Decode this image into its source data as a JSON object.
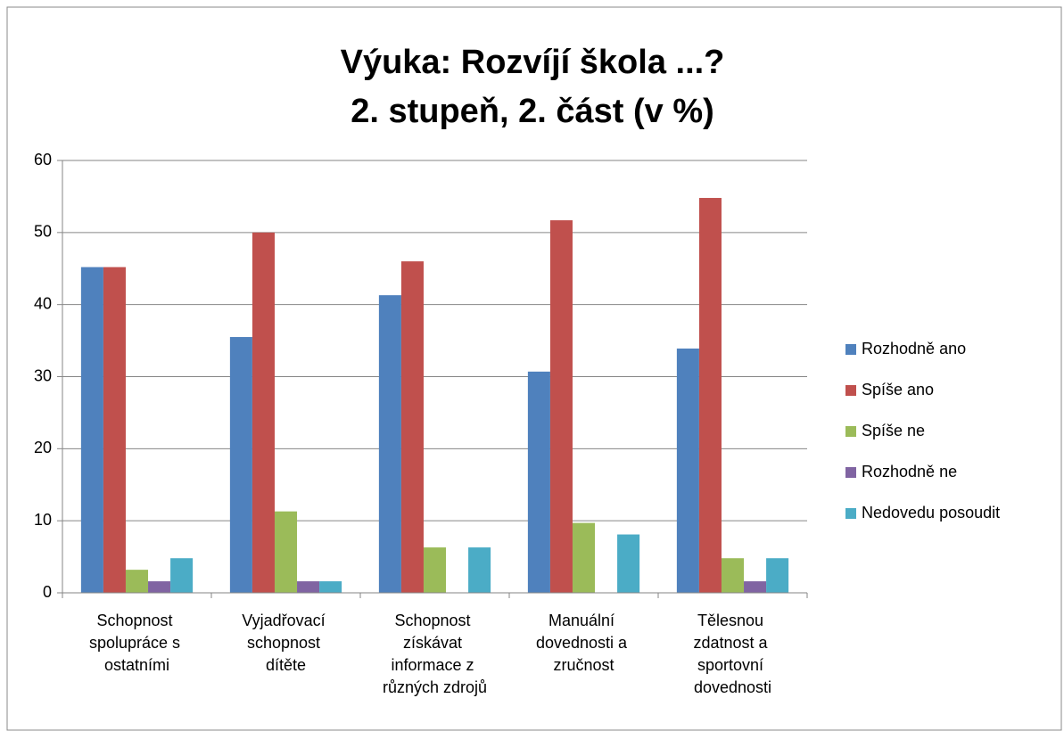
{
  "chart_data": {
    "type": "bar",
    "title": [
      "Výuka: Rozvíjí škola ...?",
      "2. stupeň, 2. část (v %)"
    ],
    "categories": [
      "Schopnost spolupráce s ostatními",
      "Vyjadřovací schopnost dítěte",
      "Schopnost získávat informace z různých zdrojů",
      "Manuální dovednosti a zručnost",
      "Tělesnou zdatnost a sportovní dovednosti"
    ],
    "series": [
      {
        "name": "Rozhodně ano",
        "color": "#4f81bd",
        "values": [
          45.2,
          35.5,
          41.3,
          30.7,
          33.9
        ]
      },
      {
        "name": "Spíše ano",
        "color": "#c0504d",
        "values": [
          45.2,
          50,
          46,
          51.7,
          54.8
        ]
      },
      {
        "name": "Spíše ne",
        "color": "#9bbb59",
        "values": [
          3.2,
          11.3,
          6.3,
          9.7,
          4.8
        ]
      },
      {
        "name": "Rozhodně ne",
        "color": "#8064a2",
        "values": [
          1.6,
          1.6,
          0,
          0,
          1.6
        ]
      },
      {
        "name": "Nedovedu posoudit",
        "color": "#4bacc6",
        "values": [
          4.8,
          1.6,
          6.3,
          8.1,
          4.8
        ]
      }
    ],
    "ylim": [
      0,
      60
    ],
    "yticks": [
      0,
      10,
      20,
      30,
      40,
      50,
      60
    ],
    "grid": true,
    "legend": "right"
  }
}
